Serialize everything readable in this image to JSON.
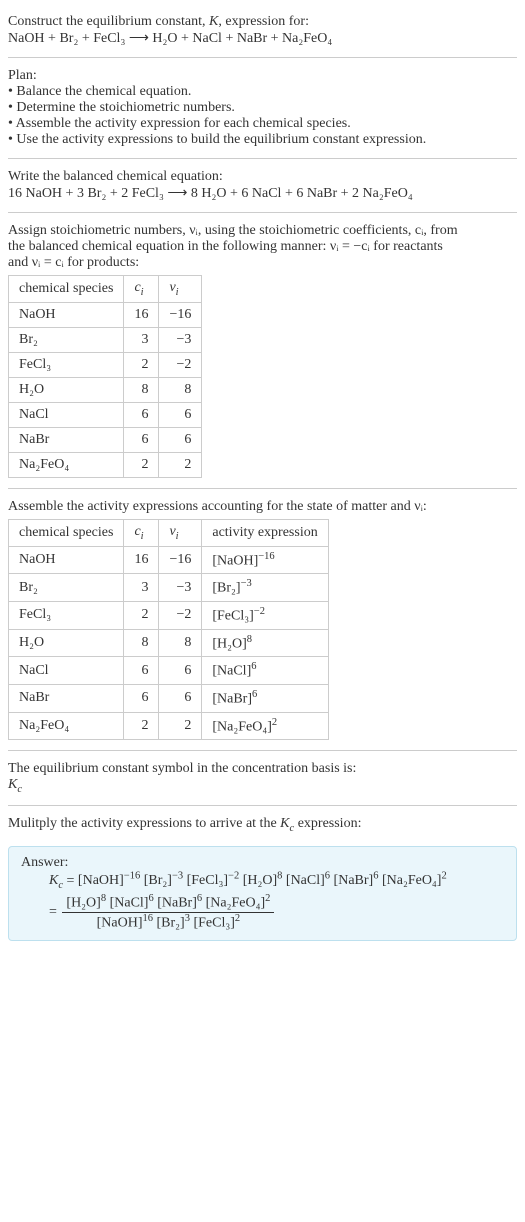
{
  "header": {
    "line1": "Construct the equilibrium constant, K, expression for:",
    "equation": "NaOH + Br₂ + FeCl₃  ⟶  H₂O + NaCl + NaBr + Na₂FeO₄"
  },
  "plan": {
    "title": "Plan:",
    "items": [
      "• Balance the chemical equation.",
      "• Determine the stoichiometric numbers.",
      "• Assemble the activity expression for each chemical species.",
      "• Use the activity expressions to build the equilibrium constant expression."
    ]
  },
  "balanced": {
    "intro": "Write the balanced chemical equation:",
    "equation": "16 NaOH + 3 Br₂ + 2 FeCl₃  ⟶  8 H₂O + 6 NaCl + 6 NaBr + 2 Na₂FeO₄"
  },
  "stoich": {
    "intro_a": "Assign stoichiometric numbers, νᵢ, using the stoichiometric coefficients, cᵢ, from",
    "intro_b": "the balanced chemical equation in the following manner: νᵢ = −cᵢ for reactants",
    "intro_c": "and νᵢ = cᵢ for products:",
    "headers": {
      "species": "chemical species",
      "ci": "cᵢ",
      "vi": "νᵢ"
    },
    "rows": [
      {
        "species": "NaOH",
        "ci": "16",
        "vi": "−16"
      },
      {
        "species": "Br₂",
        "ci": "3",
        "vi": "−3"
      },
      {
        "species": "FeCl₃",
        "ci": "2",
        "vi": "−2"
      },
      {
        "species": "H₂O",
        "ci": "8",
        "vi": "8"
      },
      {
        "species": "NaCl",
        "ci": "6",
        "vi": "6"
      },
      {
        "species": "NaBr",
        "ci": "6",
        "vi": "6"
      },
      {
        "species": "Na₂FeO₄",
        "ci": "2",
        "vi": "2"
      }
    ]
  },
  "activity": {
    "intro": "Assemble the activity expressions accounting for the state of matter and νᵢ:",
    "headers": {
      "species": "chemical species",
      "ci": "cᵢ",
      "vi": "νᵢ",
      "expr": "activity expression"
    },
    "rows": [
      {
        "species": "NaOH",
        "ci": "16",
        "vi": "−16",
        "base": "[NaOH]",
        "exp": "−16"
      },
      {
        "species": "Br₂",
        "ci": "3",
        "vi": "−3",
        "base": "[Br₂]",
        "exp": "−3"
      },
      {
        "species": "FeCl₃",
        "ci": "2",
        "vi": "−2",
        "base": "[FeCl₃]",
        "exp": "−2"
      },
      {
        "species": "H₂O",
        "ci": "8",
        "vi": "8",
        "base": "[H₂O]",
        "exp": "8"
      },
      {
        "species": "NaCl",
        "ci": "6",
        "vi": "6",
        "base": "[NaCl]",
        "exp": "6"
      },
      {
        "species": "NaBr",
        "ci": "6",
        "vi": "6",
        "base": "[NaBr]",
        "exp": "6"
      },
      {
        "species": "Na₂FeO₄",
        "ci": "2",
        "vi": "2",
        "base": "[Na₂FeO₄]",
        "exp": "2"
      }
    ]
  },
  "kc_symbol": {
    "intro": "The equilibrium constant symbol in the concentration basis is:",
    "symbol": "K𝑐"
  },
  "multiply": {
    "intro": "Mulitply the activity expressions to arrive at the K𝑐 expression:"
  },
  "answer": {
    "label": "Answer:",
    "kc": "K𝑐 = ",
    "line1_terms": [
      {
        "base": "[NaOH]",
        "exp": "−16"
      },
      {
        "base": "[Br₂]",
        "exp": "−3"
      },
      {
        "base": "[FeCl₃]",
        "exp": "−2"
      },
      {
        "base": "[H₂O]",
        "exp": "8"
      },
      {
        "base": "[NaCl]",
        "exp": "6"
      },
      {
        "base": "[NaBr]",
        "exp": "6"
      },
      {
        "base": "[Na₂FeO₄]",
        "exp": "2"
      }
    ],
    "eq": "= ",
    "numerator": [
      {
        "base": "[H₂O]",
        "exp": "8"
      },
      {
        "base": "[NaCl]",
        "exp": "6"
      },
      {
        "base": "[NaBr]",
        "exp": "6"
      },
      {
        "base": "[Na₂FeO₄]",
        "exp": "2"
      }
    ],
    "denominator": [
      {
        "base": "[NaOH]",
        "exp": "16"
      },
      {
        "base": "[Br₂]",
        "exp": "3"
      },
      {
        "base": "[FeCl₃]",
        "exp": "2"
      }
    ]
  }
}
